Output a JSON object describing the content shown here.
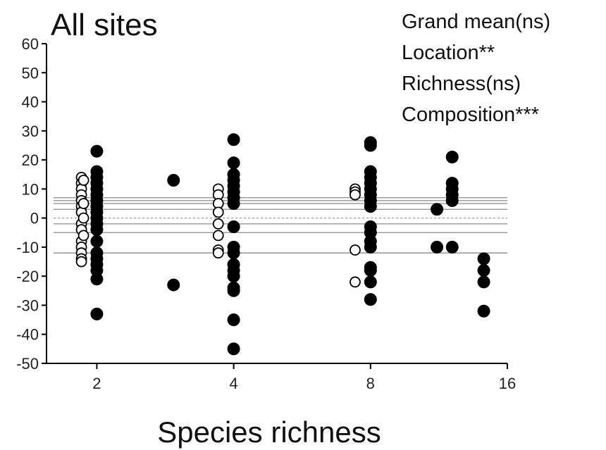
{
  "chart_data": {
    "type": "scatter",
    "title": "All sites",
    "xlabel": "Species richness",
    "ylabel": "",
    "x_scale": "log2",
    "xlim": [
      1.55,
      16
    ],
    "ylim": [
      -50,
      60
    ],
    "x_ticks": [
      2,
      4,
      8,
      16
    ],
    "y_ticks": [
      -50,
      -40,
      -30,
      -20,
      -10,
      0,
      10,
      20,
      30,
      40,
      50,
      60
    ],
    "annotations": [
      "Grand mean(ns)",
      "Location**",
      "Richness(ns)",
      "Composition***"
    ],
    "reference_lines": {
      "solid": [
        7,
        6,
        5,
        3,
        -2,
        -5,
        -12
      ],
      "dashed": [
        0
      ]
    },
    "series": [
      {
        "marker": "open-circle",
        "points": [
          {
            "x": 1.85,
            "y": 14
          },
          {
            "x": 1.85,
            "y": 12
          },
          {
            "x": 1.85,
            "y": 10
          },
          {
            "x": 1.85,
            "y": 8
          },
          {
            "x": 1.85,
            "y": 6
          },
          {
            "x": 1.85,
            "y": 4
          },
          {
            "x": 1.85,
            "y": 2
          },
          {
            "x": 1.85,
            "y": -2
          },
          {
            "x": 1.85,
            "y": -4
          },
          {
            "x": 1.85,
            "y": -8
          },
          {
            "x": 1.85,
            "y": -10
          },
          {
            "x": 1.85,
            "y": -12
          },
          {
            "x": 1.85,
            "y": -14
          },
          {
            "x": 1.85,
            "y": -15
          },
          {
            "x": 1.87,
            "y": 13
          },
          {
            "x": 1.87,
            "y": 5
          },
          {
            "x": 1.87,
            "y": 0
          },
          {
            "x": 1.87,
            "y": -6
          },
          {
            "x": 3.7,
            "y": 10
          },
          {
            "x": 3.7,
            "y": 8
          },
          {
            "x": 3.7,
            "y": 5
          },
          {
            "x": 3.7,
            "y": 2
          },
          {
            "x": 3.7,
            "y": -2
          },
          {
            "x": 3.7,
            "y": -6
          },
          {
            "x": 3.7,
            "y": -11
          },
          {
            "x": 3.7,
            "y": -12
          },
          {
            "x": 7.4,
            "y": 10
          },
          {
            "x": 7.4,
            "y": 9
          },
          {
            "x": 7.4,
            "y": 8
          },
          {
            "x": 7.4,
            "y": -11
          },
          {
            "x": 7.4,
            "y": -22
          }
        ]
      },
      {
        "marker": "filled-circle",
        "points": [
          {
            "x": 2.0,
            "y": 23
          },
          {
            "x": 2.0,
            "y": 16
          },
          {
            "x": 2.0,
            "y": 14
          },
          {
            "x": 2.0,
            "y": 12
          },
          {
            "x": 2.0,
            "y": 10
          },
          {
            "x": 2.0,
            "y": 8
          },
          {
            "x": 2.0,
            "y": 6
          },
          {
            "x": 2.0,
            "y": 4
          },
          {
            "x": 2.0,
            "y": 2
          },
          {
            "x": 2.0,
            "y": 0
          },
          {
            "x": 2.0,
            "y": -2
          },
          {
            "x": 2.0,
            "y": -4
          },
          {
            "x": 2.0,
            "y": -8
          },
          {
            "x": 2.0,
            "y": -12
          },
          {
            "x": 2.0,
            "y": -14
          },
          {
            "x": 2.0,
            "y": -16
          },
          {
            "x": 2.0,
            "y": -18
          },
          {
            "x": 2.0,
            "y": -21
          },
          {
            "x": 2.0,
            "y": -33
          },
          {
            "x": 2.95,
            "y": 13
          },
          {
            "x": 2.95,
            "y": -23
          },
          {
            "x": 4.0,
            "y": 27
          },
          {
            "x": 4.0,
            "y": 19
          },
          {
            "x": 4.0,
            "y": 15
          },
          {
            "x": 4.0,
            "y": 13
          },
          {
            "x": 4.0,
            "y": 11
          },
          {
            "x": 4.0,
            "y": 9
          },
          {
            "x": 4.0,
            "y": 7
          },
          {
            "x": 4.0,
            "y": 5
          },
          {
            "x": 4.0,
            "y": -3
          },
          {
            "x": 4.0,
            "y": -10
          },
          {
            "x": 4.0,
            "y": -12
          },
          {
            "x": 4.0,
            "y": -16
          },
          {
            "x": 4.0,
            "y": -18
          },
          {
            "x": 4.0,
            "y": -20
          },
          {
            "x": 4.0,
            "y": -24
          },
          {
            "x": 4.0,
            "y": -25
          },
          {
            "x": 4.0,
            "y": -35
          },
          {
            "x": 4.0,
            "y": -45
          },
          {
            "x": 8.0,
            "y": 26
          },
          {
            "x": 8.0,
            "y": 25
          },
          {
            "x": 8.0,
            "y": 16
          },
          {
            "x": 8.0,
            "y": 14
          },
          {
            "x": 8.0,
            "y": 12
          },
          {
            "x": 8.0,
            "y": 10
          },
          {
            "x": 8.0,
            "y": 8
          },
          {
            "x": 8.0,
            "y": 6
          },
          {
            "x": 8.0,
            "y": 4
          },
          {
            "x": 8.0,
            "y": -3
          },
          {
            "x": 8.0,
            "y": -5
          },
          {
            "x": 8.0,
            "y": -8
          },
          {
            "x": 8.0,
            "y": -10
          },
          {
            "x": 8.0,
            "y": -17
          },
          {
            "x": 8.0,
            "y": -18
          },
          {
            "x": 8.0,
            "y": -22
          },
          {
            "x": 8.0,
            "y": -28
          },
          {
            "x": 11.2,
            "y": 3
          },
          {
            "x": 11.2,
            "y": -10
          },
          {
            "x": 12.1,
            "y": 21
          },
          {
            "x": 12.1,
            "y": 12
          },
          {
            "x": 12.1,
            "y": 10
          },
          {
            "x": 12.1,
            "y": 8
          },
          {
            "x": 12.1,
            "y": 6
          },
          {
            "x": 12.1,
            "y": -10
          },
          {
            "x": 14.2,
            "y": -14
          },
          {
            "x": 14.2,
            "y": -18
          },
          {
            "x": 14.2,
            "y": -22
          },
          {
            "x": 14.2,
            "y": -32
          }
        ]
      }
    ]
  }
}
